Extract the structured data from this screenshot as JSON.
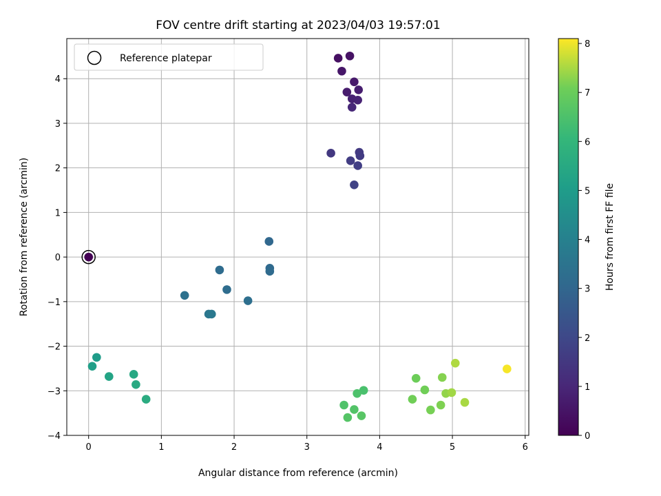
{
  "chart_data": {
    "type": "scatter",
    "title": "FOV centre drift starting at 2023/04/03 19:57:01",
    "xlabel": "Angular distance from reference (arcmin)",
    "ylabel": "Rotation from reference (arcmin)",
    "xlim": [
      -0.3,
      6.05
    ],
    "ylim": [
      -4.0,
      4.9
    ],
    "xticks": [
      0,
      1,
      2,
      3,
      4,
      5,
      6
    ],
    "yticks": [
      -4,
      -3,
      -2,
      -1,
      0,
      1,
      2,
      3,
      4
    ],
    "grid": true,
    "legend": {
      "placement": "top-left",
      "entries": [
        "Reference platepar"
      ]
    },
    "reference_point": {
      "x": 0.0,
      "y": 0.0
    },
    "colorbar": {
      "label": "Hours from first FF file",
      "colormap": "viridis",
      "range": [
        0,
        8.1
      ],
      "ticks": [
        0,
        1,
        2,
        3,
        4,
        5,
        6,
        7,
        8
      ]
    },
    "points": [
      {
        "x": 0.0,
        "y": 0.0,
        "c": 0.0
      },
      {
        "x": 3.43,
        "y": 4.46,
        "c": 0.4
      },
      {
        "x": 3.59,
        "y": 4.51,
        "c": 0.45
      },
      {
        "x": 3.48,
        "y": 4.17,
        "c": 0.55
      },
      {
        "x": 3.65,
        "y": 3.93,
        "c": 0.65
      },
      {
        "x": 3.55,
        "y": 3.7,
        "c": 0.7
      },
      {
        "x": 3.71,
        "y": 3.75,
        "c": 0.75
      },
      {
        "x": 3.62,
        "y": 3.55,
        "c": 0.85
      },
      {
        "x": 3.7,
        "y": 3.52,
        "c": 0.9
      },
      {
        "x": 3.62,
        "y": 3.36,
        "c": 1.0
      },
      {
        "x": 3.33,
        "y": 2.33,
        "c": 1.5
      },
      {
        "x": 3.72,
        "y": 2.35,
        "c": 1.55
      },
      {
        "x": 3.73,
        "y": 2.27,
        "c": 1.6
      },
      {
        "x": 3.6,
        "y": 2.16,
        "c": 1.65
      },
      {
        "x": 3.7,
        "y": 2.05,
        "c": 1.7
      },
      {
        "x": 3.65,
        "y": 1.62,
        "c": 1.8
      },
      {
        "x": 2.48,
        "y": 0.35,
        "c": 3.05
      },
      {
        "x": 2.49,
        "y": -0.25,
        "c": 3.1
      },
      {
        "x": 2.49,
        "y": -0.32,
        "c": 3.15
      },
      {
        "x": 1.8,
        "y": -0.29,
        "c": 3.2
      },
      {
        "x": 1.9,
        "y": -0.73,
        "c": 3.25
      },
      {
        "x": 2.19,
        "y": -0.98,
        "c": 3.3
      },
      {
        "x": 1.32,
        "y": -0.86,
        "c": 3.4
      },
      {
        "x": 1.65,
        "y": -1.28,
        "c": 3.6
      },
      {
        "x": 1.69,
        "y": -1.28,
        "c": 3.65
      },
      {
        "x": 0.11,
        "y": -2.25,
        "c": 5.0
      },
      {
        "x": 0.05,
        "y": -2.45,
        "c": 5.1
      },
      {
        "x": 0.28,
        "y": -2.68,
        "c": 5.3
      },
      {
        "x": 0.62,
        "y": -2.63,
        "c": 5.45
      },
      {
        "x": 0.65,
        "y": -2.86,
        "c": 5.5
      },
      {
        "x": 0.79,
        "y": -3.19,
        "c": 5.6
      },
      {
        "x": 3.78,
        "y": -2.99,
        "c": 6.45
      },
      {
        "x": 3.69,
        "y": -3.06,
        "c": 6.5
      },
      {
        "x": 3.51,
        "y": -3.32,
        "c": 6.55
      },
      {
        "x": 3.65,
        "y": -3.42,
        "c": 6.6
      },
      {
        "x": 3.56,
        "y": -3.6,
        "c": 6.65
      },
      {
        "x": 3.75,
        "y": -3.56,
        "c": 6.7
      },
      {
        "x": 4.5,
        "y": -2.72,
        "c": 7.05
      },
      {
        "x": 4.62,
        "y": -2.98,
        "c": 7.1
      },
      {
        "x": 4.45,
        "y": -3.19,
        "c": 7.1
      },
      {
        "x": 4.7,
        "y": -3.43,
        "c": 7.15
      },
      {
        "x": 4.84,
        "y": -3.32,
        "c": 7.2
      },
      {
        "x": 4.86,
        "y": -2.7,
        "c": 7.25
      },
      {
        "x": 4.91,
        "y": -3.06,
        "c": 7.35
      },
      {
        "x": 4.99,
        "y": -3.04,
        "c": 7.45
      },
      {
        "x": 5.17,
        "y": -3.26,
        "c": 7.5
      },
      {
        "x": 5.04,
        "y": -2.38,
        "c": 7.55
      },
      {
        "x": 5.75,
        "y": -2.51,
        "c": 8.05
      }
    ]
  }
}
